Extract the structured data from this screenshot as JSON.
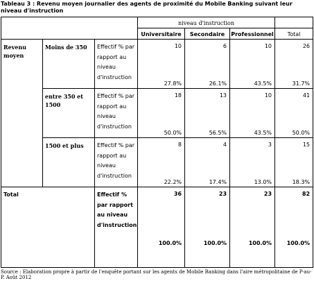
{
  "title": "Tableau 3 : Revenu moyen journalier des agents de proximité du Mobile Banking suivant leur niveau d'instruction",
  "table": {
    "header_group": "niveau d'instruction",
    "columns": [
      "Universitaire",
      "Secondaire",
      "Professionnel",
      "Total"
    ],
    "row_group": "Revenu moyen",
    "rows": [
      {
        "label": "Moins de 350",
        "measure": "Effectif % par rapport au niveau d'instruction",
        "counts": [
          10,
          6,
          10,
          26
        ],
        "percents": [
          "27.8%",
          "26.1%",
          "43.5%",
          "31.7%"
        ]
      },
      {
        "label": "entre 350 et 1500",
        "measure": "Effectif % par rapport au niveau d'instruction",
        "counts": [
          18,
          13,
          10,
          41
        ],
        "percents": [
          "50.0%",
          "56.5%",
          "43.5%",
          "50.0%"
        ]
      },
      {
        "label": "1500 et plus",
        "measure": "Effectif % par rapport au niveau d'instruction",
        "counts": [
          8,
          4,
          3,
          15
        ],
        "percents": [
          "22.2%",
          "17.4%",
          "13.0%",
          "18.3%"
        ]
      }
    ],
    "total": {
      "label": "Total",
      "measure": "Effectif % par rapport au niveau d'instruction",
      "counts": [
        36,
        23,
        23,
        82
      ],
      "percents": [
        "100.0%",
        "100.0%",
        "100.0%",
        "100.0%"
      ]
    }
  },
  "source": "Source : Elaboration propre à partir de l'enquête portant sur les agents de Mobile Banking dans l'aire métropolitaine de P-au-P. Août 2012"
}
